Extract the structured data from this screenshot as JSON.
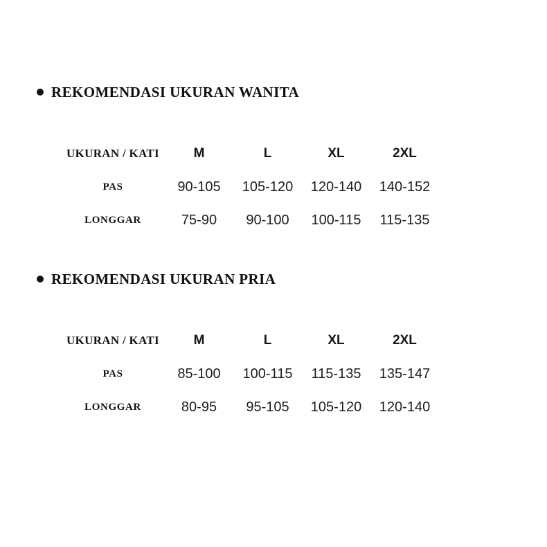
{
  "page": {
    "background": "#ffffff",
    "text_color": "#111111"
  },
  "sections": [
    {
      "heading": "REKOMENDASI UKURAN WANITA",
      "bullet_icon": "bullet-dot",
      "table": {
        "columns": [
          "UKURAN / KATI",
          "M",
          "L",
          "XL",
          "2XL"
        ],
        "rows": [
          {
            "label": "PAS",
            "values": [
              "90-105",
              "105-120",
              "120-140",
              "140-152"
            ]
          },
          {
            "label": "LONGGAR",
            "values": [
              "75-90",
              "90-100",
              "100-115",
              "115-135"
            ]
          }
        ]
      }
    },
    {
      "heading": "REKOMENDASI UKURAN PRIA",
      "bullet_icon": "bullet-dot",
      "table": {
        "columns": [
          "UKURAN / KATI",
          "M",
          "L",
          "XL",
          "2XL"
        ],
        "rows": [
          {
            "label": "PAS",
            "values": [
              "85-100",
              "100-115",
              "115-135",
              "135-147"
            ]
          },
          {
            "label": "LONGGAR",
            "values": [
              "80-95",
              "95-105",
              "105-120",
              "120-140"
            ]
          }
        ]
      }
    }
  ]
}
